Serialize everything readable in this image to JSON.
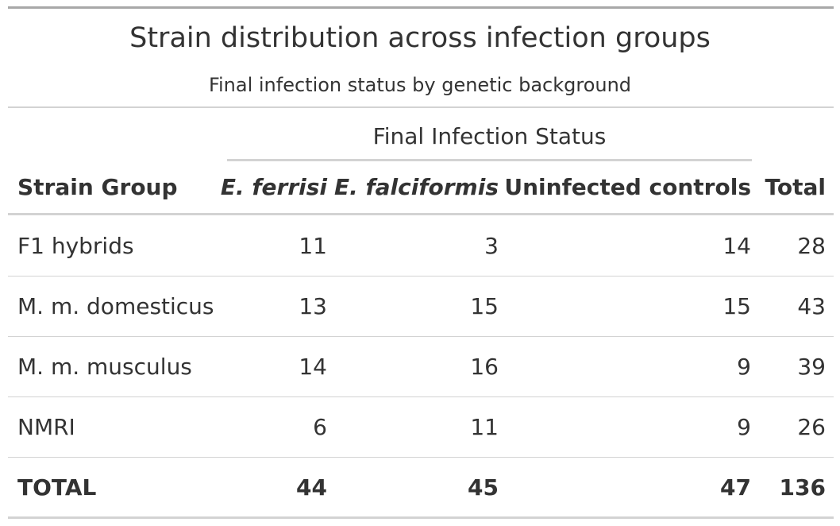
{
  "table": {
    "title": "Strain distribution across infection groups",
    "subtitle": "Final infection status by genetic background",
    "spanner": "Final Infection Status",
    "columns": {
      "group": "Strain Group",
      "ferrisi": "E. ferrisi",
      "falciformis": "E. falciformis",
      "uninfected": "Uninfected controls",
      "total": "Total"
    },
    "rows": [
      {
        "group": "F1 hybrids",
        "ferrisi": "11",
        "falciformis": "3",
        "uninfected": "14",
        "total": "28"
      },
      {
        "group": "M. m. domesticus",
        "ferrisi": "13",
        "falciformis": "15",
        "uninfected": "15",
        "total": "43"
      },
      {
        "group": "M. m. musculus",
        "ferrisi": "14",
        "falciformis": "16",
        "uninfected": "9",
        "total": "39"
      },
      {
        "group": "NMRI",
        "ferrisi": "6",
        "falciformis": "11",
        "uninfected": "9",
        "total": "26"
      }
    ],
    "totals": {
      "group": "TOTAL",
      "ferrisi": "44",
      "falciformis": "45",
      "uninfected": "47",
      "total": "136"
    }
  }
}
